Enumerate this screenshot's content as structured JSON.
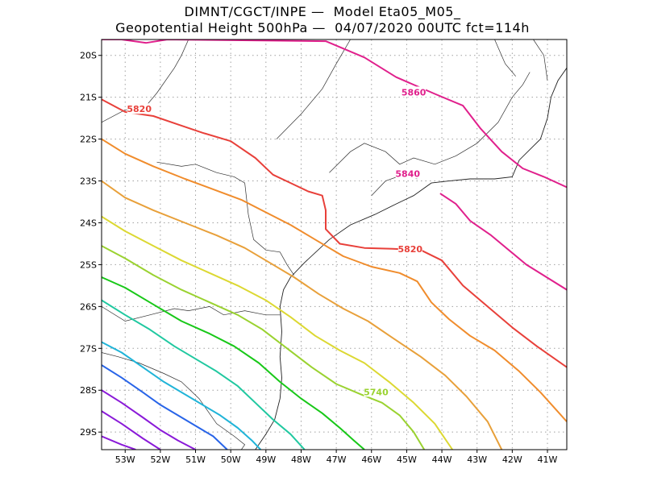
{
  "title": {
    "line1": "DIMNT/CGCT/INPE —  Model Eta05_M05_",
    "line2": "Geopotential Height 500hPa —  04/07/2020 00UTC fct=114h"
  },
  "map": {
    "projection": "lat-lon",
    "lon_range": [
      -53.67,
      -40.45
    ],
    "lat_range": [
      -29.42,
      -19.62
    ],
    "lon_ticks": [
      {
        "value": -53,
        "label": "53W"
      },
      {
        "value": -52,
        "label": "52W"
      },
      {
        "value": -51,
        "label": "51W"
      },
      {
        "value": -50,
        "label": "50W"
      },
      {
        "value": -49,
        "label": "49W"
      },
      {
        "value": -48,
        "label": "48W"
      },
      {
        "value": -47,
        "label": "47W"
      },
      {
        "value": -46,
        "label": "46W"
      },
      {
        "value": -45,
        "label": "45W"
      },
      {
        "value": -44,
        "label": "44W"
      },
      {
        "value": -43,
        "label": "43W"
      },
      {
        "value": -42,
        "label": "42W"
      },
      {
        "value": -41,
        "label": "41W"
      }
    ],
    "lat_ticks": [
      {
        "value": -20,
        "label": "20S"
      },
      {
        "value": -21,
        "label": "21S"
      },
      {
        "value": -22,
        "label": "22S"
      },
      {
        "value": -23,
        "label": "23S"
      },
      {
        "value": -24,
        "label": "24S"
      },
      {
        "value": -25,
        "label": "25S"
      },
      {
        "value": -26,
        "label": "26S"
      },
      {
        "value": -27,
        "label": "27S"
      },
      {
        "value": -28,
        "label": "28S"
      },
      {
        "value": -29,
        "label": "29S"
      }
    ],
    "contours": [
      {
        "level": 5860,
        "color": "#e0208c",
        "label": "5860",
        "label_at": [
          -44.8,
          -20.88
        ],
        "points": [
          [
            -53.67,
            -19.62
          ],
          [
            -53.1,
            -19.62
          ],
          [
            -52.4,
            -19.7
          ],
          [
            -51.8,
            -19.62
          ],
          [
            -47.3,
            -19.66
          ],
          [
            -46.2,
            -20.05
          ],
          [
            -45.3,
            -20.52
          ],
          [
            -44.2,
            -20.92
          ],
          [
            -43.4,
            -21.2
          ],
          [
            -42.9,
            -21.75
          ],
          [
            -42.3,
            -22.3
          ],
          [
            -41.7,
            -22.7
          ],
          [
            -41.1,
            -22.9
          ],
          [
            -40.45,
            -23.15
          ]
        ]
      },
      {
        "level": 5840,
        "color": "#e0208c",
        "label": "5840",
        "label_at": [
          -44.97,
          -22.83
        ],
        "points": [
          [
            -44.05,
            -23.3
          ],
          [
            -43.6,
            -23.55
          ],
          [
            -43.2,
            -23.95
          ],
          [
            -42.6,
            -24.3
          ],
          [
            -41.6,
            -25.0
          ],
          [
            -40.45,
            -25.6
          ]
        ]
      },
      {
        "level": 5820,
        "color": "#e8403a",
        "label": "5820",
        "label_at": [
          -52.6,
          -21.28
        ],
        "label2": "5820",
        "label2_at": [
          -44.9,
          -24.63
        ],
        "points": [
          [
            -53.67,
            -21.05
          ],
          [
            -53.0,
            -21.35
          ],
          [
            -52.2,
            -21.45
          ],
          [
            -51.5,
            -21.65
          ],
          [
            -50.8,
            -21.85
          ],
          [
            -50.0,
            -22.05
          ],
          [
            -49.3,
            -22.45
          ],
          [
            -48.8,
            -22.85
          ],
          [
            -48.3,
            -23.05
          ],
          [
            -47.8,
            -23.25
          ],
          [
            -47.4,
            -23.35
          ],
          [
            -47.3,
            -23.7
          ],
          [
            -47.3,
            -24.15
          ],
          [
            -46.9,
            -24.5
          ],
          [
            -46.2,
            -24.6
          ],
          [
            -45.4,
            -24.62
          ],
          [
            -44.6,
            -24.65
          ],
          [
            -44.0,
            -24.9
          ],
          [
            -43.4,
            -25.5
          ],
          [
            -42.7,
            -26.0
          ],
          [
            -42.0,
            -26.5
          ],
          [
            -41.3,
            -26.95
          ],
          [
            -40.45,
            -27.45
          ]
        ]
      },
      {
        "level": 5800,
        "color": "#f08c2c",
        "points": [
          [
            -53.67,
            -22.0
          ],
          [
            -53.0,
            -22.35
          ],
          [
            -52.2,
            -22.65
          ],
          [
            -51.3,
            -22.95
          ],
          [
            -50.5,
            -23.2
          ],
          [
            -49.7,
            -23.45
          ],
          [
            -49.0,
            -23.75
          ],
          [
            -48.3,
            -24.05
          ],
          [
            -47.6,
            -24.4
          ],
          [
            -46.8,
            -24.8
          ],
          [
            -46.0,
            -25.05
          ],
          [
            -45.2,
            -25.2
          ],
          [
            -44.7,
            -25.4
          ],
          [
            -44.3,
            -25.9
          ],
          [
            -43.8,
            -26.3
          ],
          [
            -43.2,
            -26.7
          ],
          [
            -42.5,
            -27.05
          ],
          [
            -41.8,
            -27.55
          ],
          [
            -41.2,
            -28.05
          ],
          [
            -40.45,
            -28.75
          ]
        ]
      },
      {
        "level": 5780,
        "color": "#e8a03a",
        "points": [
          [
            -53.67,
            -23.0
          ],
          [
            -53.0,
            -23.4
          ],
          [
            -52.2,
            -23.7
          ],
          [
            -51.3,
            -24.0
          ],
          [
            -50.4,
            -24.3
          ],
          [
            -49.6,
            -24.6
          ],
          [
            -48.9,
            -24.95
          ],
          [
            -48.2,
            -25.3
          ],
          [
            -47.5,
            -25.7
          ],
          [
            -46.8,
            -26.05
          ],
          [
            -46.1,
            -26.35
          ],
          [
            -45.4,
            -26.75
          ],
          [
            -44.6,
            -27.2
          ],
          [
            -43.9,
            -27.65
          ],
          [
            -43.3,
            -28.15
          ],
          [
            -42.7,
            -28.75
          ],
          [
            -42.3,
            -29.42
          ]
        ]
      },
      {
        "level": 5760,
        "color": "#dcd832",
        "points": [
          [
            -53.67,
            -23.85
          ],
          [
            -53.0,
            -24.2
          ],
          [
            -52.2,
            -24.55
          ],
          [
            -51.4,
            -24.9
          ],
          [
            -50.6,
            -25.2
          ],
          [
            -49.8,
            -25.5
          ],
          [
            -49.0,
            -25.85
          ],
          [
            -48.3,
            -26.25
          ],
          [
            -47.6,
            -26.7
          ],
          [
            -46.9,
            -27.05
          ],
          [
            -46.2,
            -27.35
          ],
          [
            -45.5,
            -27.8
          ],
          [
            -44.8,
            -28.3
          ],
          [
            -44.2,
            -28.8
          ],
          [
            -43.7,
            -29.42
          ]
        ]
      },
      {
        "level": 5740,
        "color": "#9ad230",
        "label": "5740",
        "label_at": [
          -45.87,
          -28.04
        ],
        "points": [
          [
            -53.67,
            -24.55
          ],
          [
            -53.0,
            -24.85
          ],
          [
            -52.2,
            -25.25
          ],
          [
            -51.4,
            -25.6
          ],
          [
            -50.6,
            -25.9
          ],
          [
            -49.8,
            -26.2
          ],
          [
            -49.1,
            -26.55
          ],
          [
            -48.4,
            -27.0
          ],
          [
            -47.7,
            -27.45
          ],
          [
            -47.0,
            -27.85
          ],
          [
            -46.3,
            -28.1
          ],
          [
            -45.7,
            -28.3
          ],
          [
            -45.2,
            -28.6
          ],
          [
            -44.8,
            -29.0
          ],
          [
            -44.5,
            -29.42
          ]
        ]
      },
      {
        "level": 5720,
        "color": "#18c818",
        "points": [
          [
            -53.67,
            -25.3
          ],
          [
            -53.0,
            -25.55
          ],
          [
            -52.2,
            -25.95
          ],
          [
            -51.4,
            -26.35
          ],
          [
            -50.6,
            -26.65
          ],
          [
            -49.9,
            -26.95
          ],
          [
            -49.2,
            -27.35
          ],
          [
            -48.6,
            -27.8
          ],
          [
            -48.0,
            -28.2
          ],
          [
            -47.4,
            -28.55
          ],
          [
            -46.9,
            -28.9
          ],
          [
            -46.5,
            -29.2
          ],
          [
            -46.2,
            -29.42
          ]
        ]
      },
      {
        "level": 5700,
        "color": "#20c8a0",
        "points": [
          [
            -53.67,
            -25.85
          ],
          [
            -53.0,
            -26.2
          ],
          [
            -52.3,
            -26.55
          ],
          [
            -51.6,
            -26.95
          ],
          [
            -51.0,
            -27.25
          ],
          [
            -50.4,
            -27.55
          ],
          [
            -49.8,
            -27.9
          ],
          [
            -49.3,
            -28.3
          ],
          [
            -48.8,
            -28.7
          ],
          [
            -48.3,
            -29.05
          ],
          [
            -47.9,
            -29.42
          ]
        ]
      },
      {
        "level": 5680,
        "color": "#20b4d8",
        "points": [
          [
            -53.67,
            -26.85
          ],
          [
            -53.1,
            -27.1
          ],
          [
            -52.5,
            -27.45
          ],
          [
            -51.9,
            -27.8
          ],
          [
            -51.3,
            -28.1
          ],
          [
            -50.8,
            -28.35
          ],
          [
            -50.3,
            -28.6
          ],
          [
            -49.8,
            -28.9
          ],
          [
            -49.4,
            -29.2
          ],
          [
            -49.15,
            -29.42
          ]
        ]
      },
      {
        "level": 5660,
        "color": "#2864e8",
        "points": [
          [
            -53.67,
            -27.4
          ],
          [
            -53.1,
            -27.7
          ],
          [
            -52.5,
            -28.05
          ],
          [
            -52.0,
            -28.35
          ],
          [
            -51.5,
            -28.6
          ],
          [
            -51.0,
            -28.85
          ],
          [
            -50.5,
            -29.1
          ],
          [
            -50.1,
            -29.42
          ]
        ]
      },
      {
        "level": 5640,
        "color": "#8a1ad8",
        "points": [
          [
            -53.67,
            -28.0
          ],
          [
            -53.1,
            -28.3
          ],
          [
            -52.5,
            -28.65
          ],
          [
            -52.0,
            -28.95
          ],
          [
            -51.5,
            -29.2
          ],
          [
            -51.0,
            -29.42
          ]
        ]
      },
      {
        "level": 5620,
        "color": "#8a1ad8",
        "points": [
          [
            -53.67,
            -28.5
          ],
          [
            -53.1,
            -28.8
          ],
          [
            -52.5,
            -29.15
          ],
          [
            -52.0,
            -29.42
          ]
        ]
      },
      {
        "level": 5600,
        "color": "#8a1ad8",
        "points": [
          [
            -53.67,
            -29.1
          ],
          [
            -53.1,
            -29.3
          ],
          [
            -52.7,
            -29.42
          ]
        ]
      }
    ],
    "coastline": [
      [
        -49.3,
        -29.42
      ],
      [
        -49.0,
        -29.05
      ],
      [
        -48.75,
        -28.7
      ],
      [
        -48.6,
        -28.2
      ],
      [
        -48.55,
        -27.7
      ],
      [
        -48.6,
        -27.2
      ],
      [
        -48.55,
        -26.6
      ],
      [
        -48.6,
        -26.0
      ],
      [
        -48.5,
        -25.6
      ],
      [
        -48.3,
        -25.3
      ],
      [
        -47.9,
        -24.95
      ],
      [
        -47.2,
        -24.4
      ],
      [
        -46.6,
        -24.05
      ],
      [
        -45.9,
        -23.8
      ],
      [
        -45.3,
        -23.55
      ],
      [
        -44.8,
        -23.35
      ],
      [
        -44.3,
        -23.05
      ],
      [
        -43.8,
        -23.0
      ],
      [
        -43.2,
        -22.95
      ],
      [
        -42.5,
        -22.95
      ],
      [
        -42.0,
        -22.9
      ],
      [
        -41.8,
        -22.5
      ],
      [
        -41.2,
        -22.0
      ],
      [
        -41.0,
        -21.5
      ],
      [
        -40.9,
        -21.0
      ],
      [
        -40.7,
        -20.6
      ],
      [
        -40.45,
        -20.3
      ]
    ],
    "borders": [
      [
        [
          -53.67,
          -21.6
        ],
        [
          -53.0,
          -21.3
        ],
        [
          -52.5,
          -21.3
        ],
        [
          -52.1,
          -20.9
        ],
        [
          -51.6,
          -20.3
        ],
        [
          -51.4,
          -20.0
        ],
        [
          -51.2,
          -19.62
        ]
      ],
      [
        [
          -52.1,
          -22.55
        ],
        [
          -51.4,
          -22.65
        ],
        [
          -51.0,
          -22.6
        ],
        [
          -50.4,
          -22.8
        ],
        [
          -49.9,
          -22.9
        ],
        [
          -49.6,
          -23.05
        ],
        [
          -49.5,
          -23.8
        ],
        [
          -49.35,
          -24.4
        ],
        [
          -49.0,
          -24.65
        ],
        [
          -48.6,
          -24.7
        ],
        [
          -48.4,
          -25.0
        ],
        [
          -48.2,
          -25.25
        ]
      ],
      [
        [
          -53.67,
          -26.0
        ],
        [
          -53.0,
          -26.35
        ],
        [
          -52.3,
          -26.2
        ],
        [
          -51.6,
          -26.05
        ],
        [
          -51.2,
          -26.1
        ],
        [
          -50.6,
          -26.0
        ],
        [
          -50.2,
          -26.2
        ],
        [
          -49.6,
          -26.1
        ],
        [
          -49.0,
          -26.2
        ],
        [
          -48.6,
          -26.2
        ]
      ],
      [
        [
          -53.67,
          -27.1
        ],
        [
          -53.2,
          -27.2
        ],
        [
          -52.6,
          -27.35
        ],
        [
          -51.9,
          -27.6
        ],
        [
          -51.4,
          -27.8
        ],
        [
          -50.9,
          -28.2
        ],
        [
          -50.4,
          -28.8
        ],
        [
          -49.9,
          -29.1
        ],
        [
          -49.6,
          -29.3
        ],
        [
          -49.7,
          -29.42
        ]
      ],
      [
        [
          -48.7,
          -22.0
        ],
        [
          -48.0,
          -21.4
        ],
        [
          -47.4,
          -20.8
        ],
        [
          -47.0,
          -20.2
        ],
        [
          -46.6,
          -19.62
        ]
      ],
      [
        [
          -47.2,
          -22.8
        ],
        [
          -46.6,
          -22.3
        ],
        [
          -46.2,
          -22.1
        ],
        [
          -45.6,
          -22.3
        ],
        [
          -45.2,
          -22.6
        ],
        [
          -44.8,
          -22.45
        ],
        [
          -44.2,
          -22.6
        ],
        [
          -43.6,
          -22.4
        ],
        [
          -43.0,
          -22.1
        ],
        [
          -42.4,
          -21.6
        ],
        [
          -42.0,
          -21.0
        ],
        [
          -41.7,
          -20.7
        ],
        [
          -41.5,
          -20.4
        ]
      ],
      [
        [
          -46.0,
          -23.35
        ],
        [
          -45.6,
          -23.0
        ],
        [
          -45.1,
          -22.85
        ],
        [
          -44.7,
          -22.95
        ]
      ],
      [
        [
          -42.5,
          -19.62
        ],
        [
          -42.2,
          -20.2
        ],
        [
          -41.9,
          -20.5
        ]
      ],
      [
        [
          -41.4,
          -19.62
        ],
        [
          -41.1,
          -20.0
        ],
        [
          -41.0,
          -20.6
        ]
      ]
    ]
  }
}
